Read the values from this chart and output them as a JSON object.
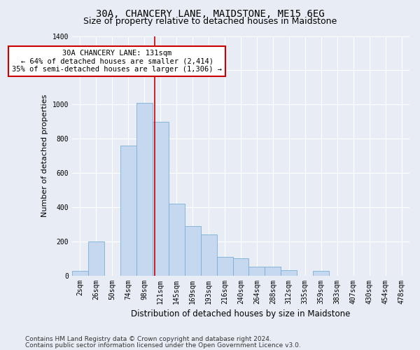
{
  "title": "30A, CHANCERY LANE, MAIDSTONE, ME15 6EG",
  "subtitle": "Size of property relative to detached houses in Maidstone",
  "xlabel": "Distribution of detached houses by size in Maidstone",
  "ylabel": "Number of detached properties",
  "bin_labels": [
    "2sqm",
    "26sqm",
    "50sqm",
    "74sqm",
    "98sqm",
    "121sqm",
    "145sqm",
    "169sqm",
    "193sqm",
    "216sqm",
    "240sqm",
    "264sqm",
    "288sqm",
    "312sqm",
    "335sqm",
    "359sqm",
    "383sqm",
    "407sqm",
    "430sqm",
    "454sqm",
    "478sqm"
  ],
  "bar_heights": [
    25,
    200,
    0,
    760,
    1010,
    900,
    420,
    290,
    240,
    110,
    100,
    50,
    50,
    30,
    0,
    25,
    0,
    0,
    0,
    0,
    0
  ],
  "bar_color": "#c5d8ef",
  "bar_edge_color": "#7bafd4",
  "vline_color": "#cc0000",
  "vline_x_index": 4.65,
  "annotation_text": "30A CHANCERY LANE: 131sqm\n← 64% of detached houses are smaller (2,414)\n35% of semi-detached houses are larger (1,306) →",
  "annotation_box_facecolor": "#ffffff",
  "annotation_box_edgecolor": "#cc0000",
  "ylim": [
    0,
    1400
  ],
  "yticks": [
    0,
    200,
    400,
    600,
    800,
    1000,
    1200,
    1400
  ],
  "bg_color": "#e8edf5",
  "plot_bg_color": "#e8edf5",
  "grid_color": "#ffffff",
  "footer1": "Contains HM Land Registry data © Crown copyright and database right 2024.",
  "footer2": "Contains public sector information licensed under the Open Government Licence v3.0.",
  "title_fontsize": 10,
  "subtitle_fontsize": 9,
  "xlabel_fontsize": 8.5,
  "ylabel_fontsize": 8,
  "tick_fontsize": 7,
  "annotation_fontsize": 7.5,
  "footer_fontsize": 6.5
}
